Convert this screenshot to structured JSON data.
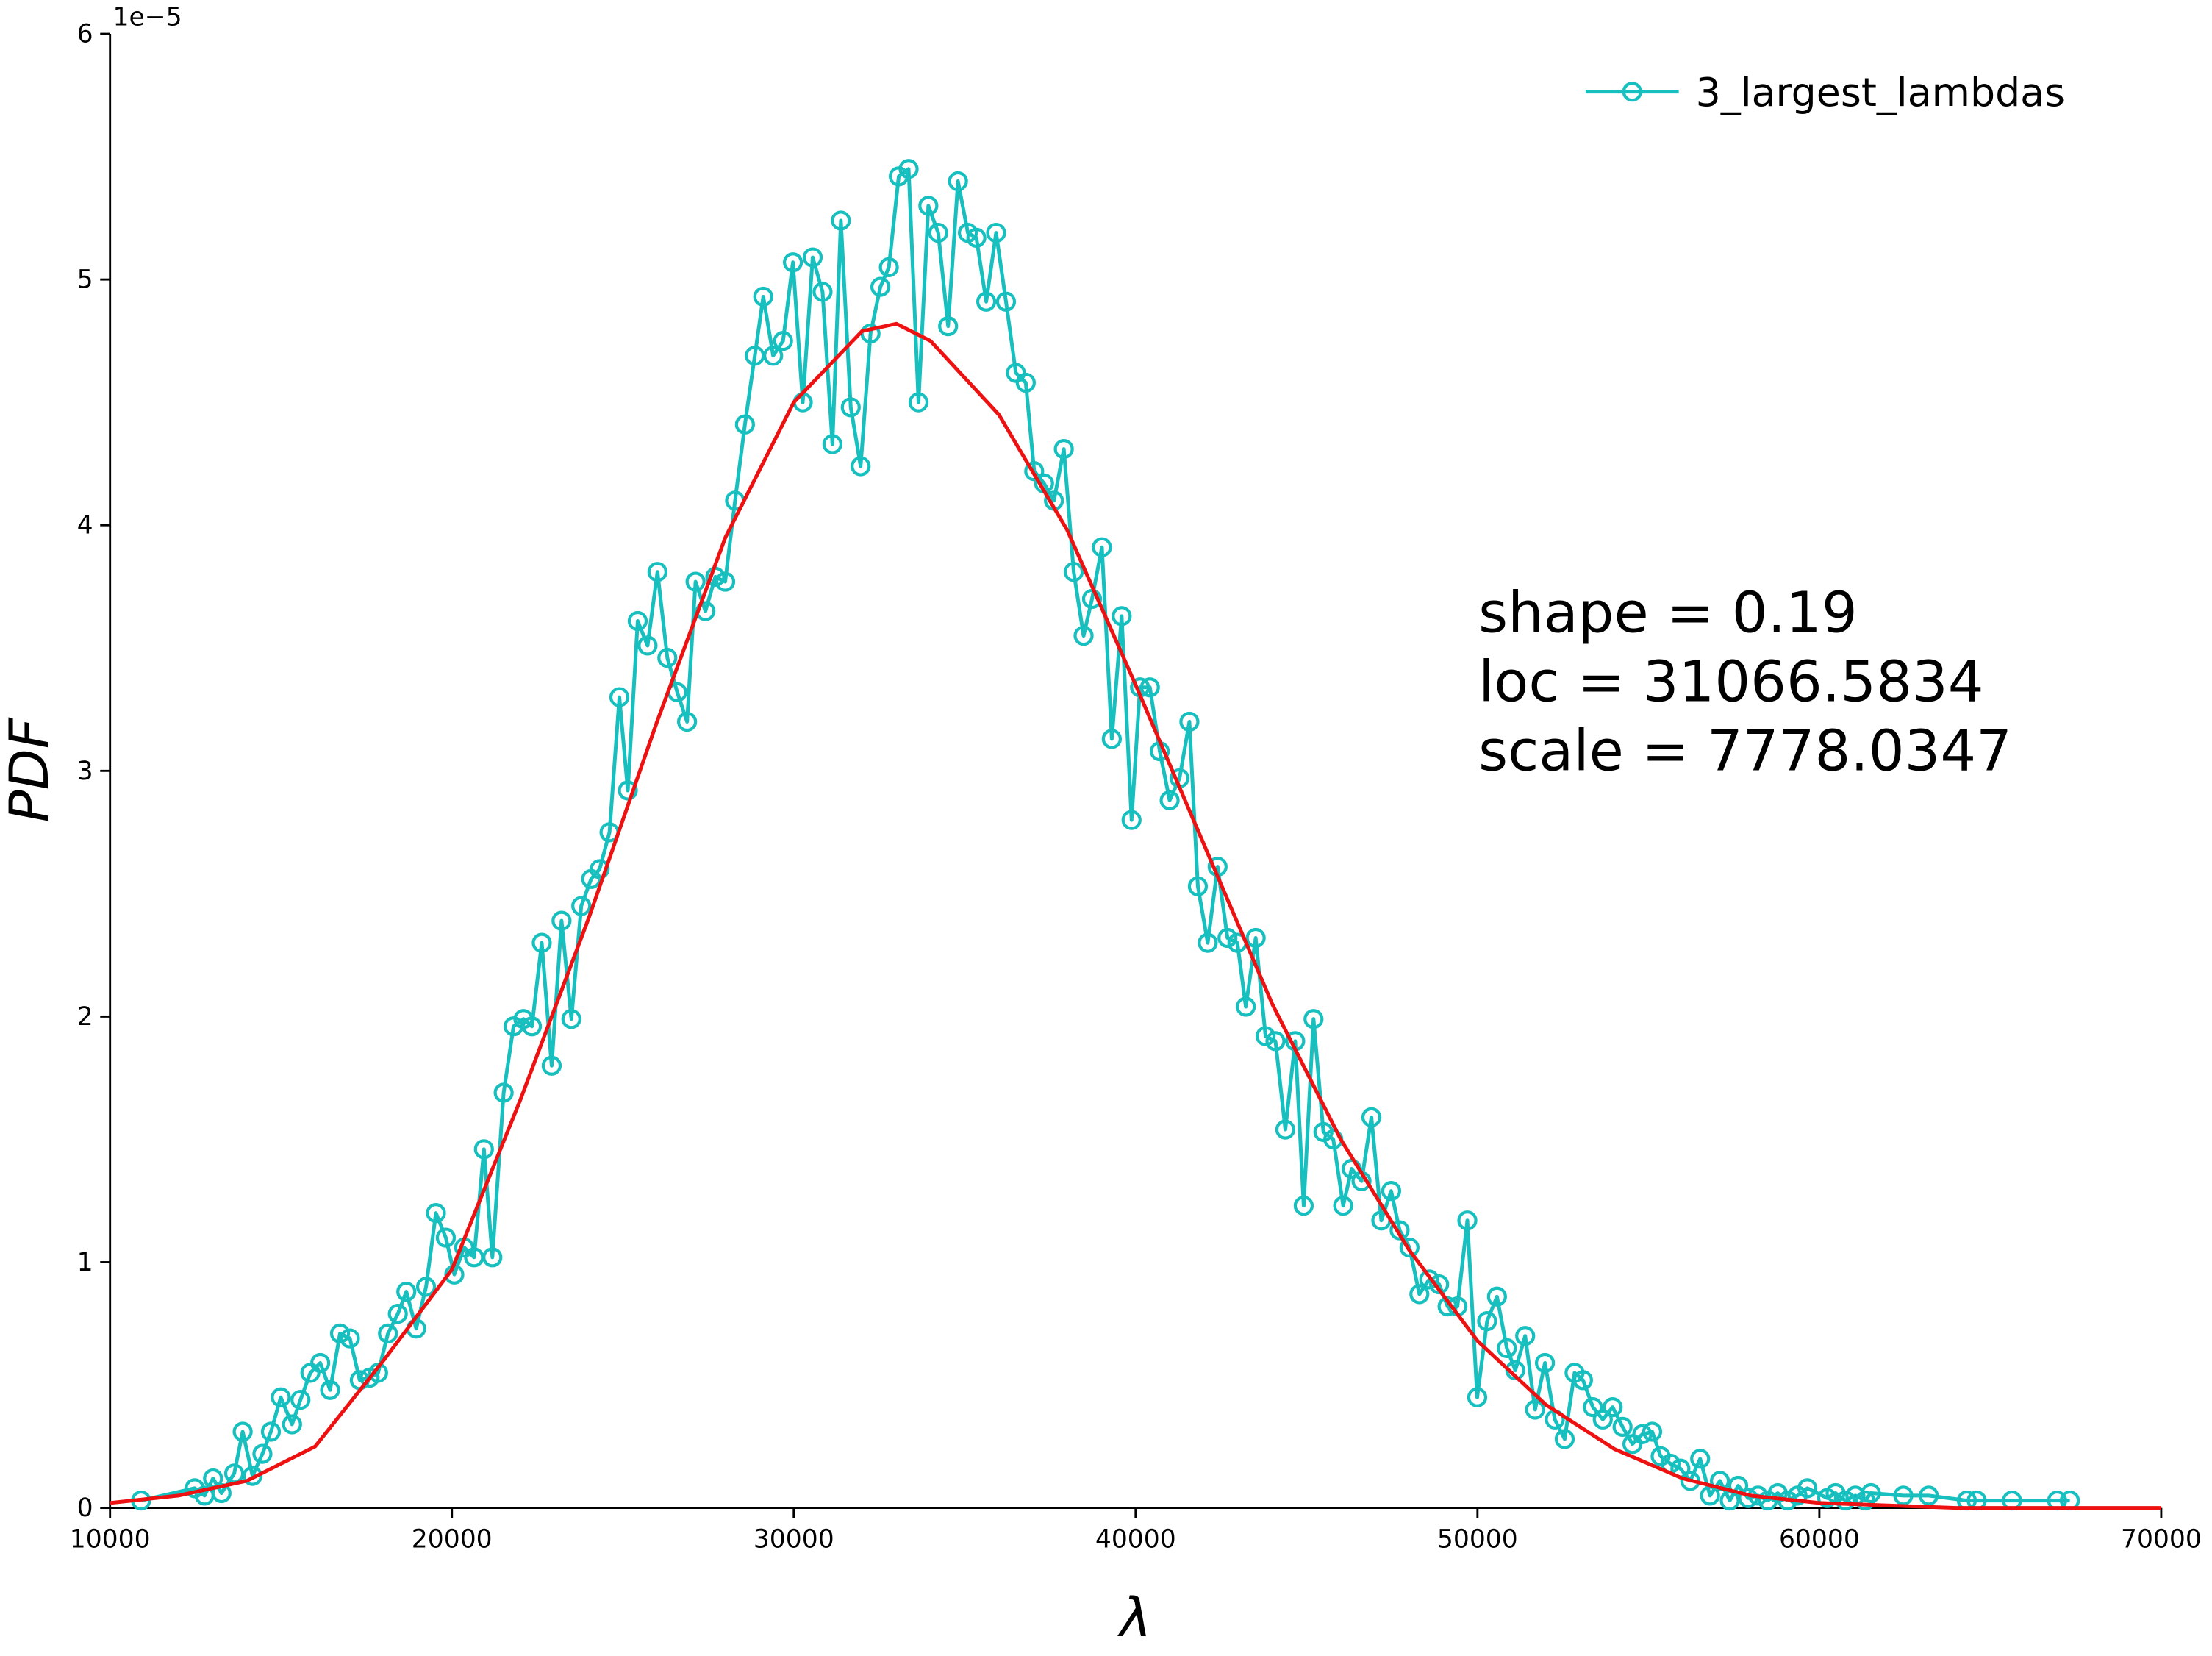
{
  "chart_data": {
    "type": "line",
    "x_label": "λ",
    "y_label": "PDF",
    "y_offset_label": "1e−5",
    "xlim": [
      10000,
      70000
    ],
    "xticks": [
      10000,
      20000,
      30000,
      40000,
      50000,
      60000,
      70000
    ],
    "ylim": [
      0,
      6
    ],
    "yticks": [
      0,
      1,
      2,
      3,
      4,
      5,
      6
    ],
    "legend_position": "upper right",
    "annotations": [
      "shape = 0.19",
      "loc = 31066.5834",
      "scale = 7778.0347"
    ],
    "series": [
      {
        "name": "3_largest_lambdas",
        "color": "#17bfbf",
        "marker": "o",
        "x": [
          10908,
          12476,
          12765,
          13013,
          13260,
          13632,
          13880,
          14168,
          14457,
          14705,
          14994,
          15324,
          15571,
          15860,
          16149,
          16438,
          16727,
          17016,
          17305,
          17594,
          17841,
          18130,
          18419,
          18667,
          18956,
          19244,
          19533,
          19822,
          20070,
          20359,
          20648,
          20937,
          21184,
          21514,
          21803,
          22092,
          22340,
          22629,
          22918,
          23207,
          23495,
          23784,
          24073,
          24321,
          24610,
          24899,
          25146,
          25435,
          25724,
          26013,
          26302,
          26591,
          26879,
          27127,
          27416,
          27705,
          27994,
          28283,
          28572,
          28861,
          29108,
          29397,
          29686,
          29975,
          30264,
          30553,
          30842,
          31131,
          31378,
          31667,
          31956,
          32245,
          32534,
          32782,
          33071,
          33360,
          33649,
          33937,
          34226,
          34515,
          34804,
          35093,
          35341,
          35630,
          35919,
          36208,
          36497,
          36786,
          37033,
          37322,
          37611,
          37900,
          38189,
          38478,
          38725,
          39014,
          39303,
          39592,
          39881,
          40128,
          40417,
          40706,
          40995,
          41284,
          41573,
          41820,
          42109,
          42398,
          42687,
          42976,
          43223,
          43512,
          43801,
          44090,
          44379,
          44668,
          44916,
          45204,
          45493,
          45782,
          46071,
          46319,
          46608,
          46897,
          47186,
          47475,
          47722,
          48011,
          48300,
          48589,
          48878,
          49125,
          49414,
          49703,
          49992,
          50281,
          50570,
          50859,
          51106,
          51395,
          51684,
          51973,
          52262,
          52551,
          52840,
          53087,
          53376,
          53665,
          53954,
          54243,
          54532,
          54821,
          55110,
          55357,
          55646,
          55935,
          56224,
          56513,
          56802,
          57091,
          57380,
          57627,
          57916,
          58205,
          58494,
          58783,
          59072,
          59361,
          59650,
          60228,
          60475,
          60764,
          61053,
          61342,
          61507,
          62456,
          63199,
          64314,
          64603,
          65635,
          66955,
          67327
        ],
        "values": [
          0.03,
          0.08,
          0.05,
          0.12,
          0.06,
          0.14,
          0.31,
          0.13,
          0.22,
          0.31,
          0.45,
          0.34,
          0.44,
          0.55,
          0.59,
          0.48,
          0.71,
          0.69,
          0.52,
          0.53,
          0.55,
          0.71,
          0.79,
          0.88,
          0.73,
          0.9,
          1.2,
          1.1,
          0.95,
          1.06,
          1.02,
          1.46,
          1.02,
          1.69,
          1.96,
          1.99,
          1.96,
          2.3,
          1.8,
          2.39,
          1.99,
          2.45,
          2.56,
          2.6,
          2.75,
          3.3,
          2.92,
          3.61,
          3.51,
          3.81,
          3.46,
          3.32,
          3.2,
          3.77,
          3.65,
          3.79,
          3.77,
          4.1,
          4.41,
          4.69,
          4.93,
          4.69,
          4.75,
          5.07,
          4.5,
          5.09,
          4.95,
          4.33,
          5.24,
          4.48,
          4.24,
          4.78,
          4.97,
          5.05,
          5.42,
          5.45,
          4.5,
          5.3,
          5.19,
          4.81,
          5.4,
          5.19,
          5.17,
          4.91,
          5.19,
          4.91,
          4.62,
          4.58,
          4.22,
          4.17,
          4.1,
          4.31,
          3.81,
          3.55,
          3.7,
          3.91,
          3.13,
          3.63,
          2.8,
          3.34,
          3.34,
          3.08,
          2.88,
          2.97,
          3.2,
          2.53,
          2.3,
          2.61,
          2.32,
          2.3,
          2.04,
          2.32,
          1.92,
          1.9,
          1.54,
          1.9,
          1.23,
          1.99,
          1.53,
          1.5,
          1.23,
          1.38,
          1.33,
          1.59,
          1.17,
          1.29,
          1.13,
          1.06,
          0.87,
          0.93,
          0.91,
          0.82,
          0.82,
          1.17,
          0.45,
          0.76,
          0.86,
          0.65,
          0.56,
          0.7,
          0.4,
          0.59,
          0.36,
          0.28,
          0.55,
          0.52,
          0.41,
          0.36,
          0.41,
          0.33,
          0.26,
          0.3,
          0.31,
          0.21,
          0.18,
          0.16,
          0.11,
          0.2,
          0.05,
          0.11,
          0.03,
          0.09,
          0.04,
          0.05,
          0.03,
          0.06,
          0.03,
          0.05,
          0.08,
          0.04,
          0.06,
          0.03,
          0.05,
          0.03,
          0.06,
          0.05,
          0.05,
          0.03,
          0.03,
          0.03,
          0.03,
          0.03
        ]
      },
      {
        "color": "#ee1111",
        "x": [
          10000,
          12000,
          14000,
          16000,
          18000,
          20000,
          22000,
          24000,
          26000,
          28000,
          30000,
          32000,
          33000,
          34000,
          36000,
          38000,
          40000,
          42000,
          44000,
          46000,
          48000,
          50000,
          52000,
          54000,
          56000,
          58000,
          60000,
          62000,
          64000,
          66000,
          68000,
          70000
        ],
        "values": [
          0.02,
          0.05,
          0.11,
          0.25,
          0.6,
          0.97,
          1.66,
          2.4,
          3.2,
          3.95,
          4.5,
          4.79,
          4.82,
          4.75,
          4.45,
          3.98,
          3.35,
          2.7,
          2.05,
          1.5,
          1.05,
          0.68,
          0.42,
          0.24,
          0.12,
          0.05,
          0.02,
          0.01,
          0,
          0,
          0,
          0
        ]
      }
    ]
  }
}
